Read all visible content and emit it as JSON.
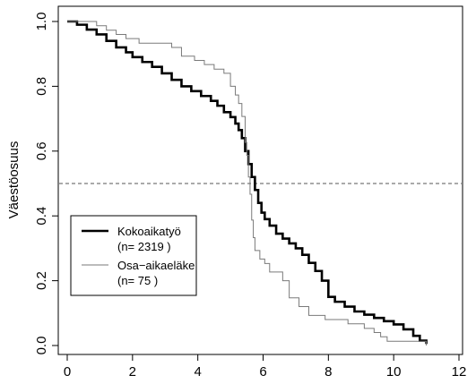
{
  "chart_data": {
    "type": "line",
    "line_shape": "step",
    "title": "",
    "xlabel": "",
    "ylabel": "Väestöosuus",
    "xlim": [
      0,
      12
    ],
    "ylim": [
      0,
      1
    ],
    "x_ticks": [
      0,
      2,
      4,
      6,
      8,
      10,
      12
    ],
    "y_ticks": [
      0.0,
      0.2,
      0.4,
      0.6,
      0.8,
      1.0
    ],
    "x_tick_labels": [
      "0",
      "2",
      "4",
      "6",
      "8",
      "10",
      "12"
    ],
    "y_tick_labels": [
      "0.0",
      "0.2",
      "0.4",
      "0.6",
      "0.8",
      "1.0"
    ],
    "grid": false,
    "reference_line": {
      "y": 0.5,
      "style": "dashed"
    },
    "legend": {
      "placement": "bottom-left",
      "entries": [
        {
          "label": "Kokoaikatyö",
          "sublabel": "(n= 2319 )",
          "line": "thick"
        },
        {
          "label": "Osa−aikaeläke",
          "sublabel": "(n= 75 )",
          "line": "thin"
        }
      ]
    },
    "series": [
      {
        "name": "Kokoaikatyö",
        "color": "#000000",
        "points": [
          [
            0,
            1.0
          ],
          [
            0.3,
            0.99
          ],
          [
            0.6,
            0.975
          ],
          [
            0.9,
            0.96
          ],
          [
            1.2,
            0.94
          ],
          [
            1.5,
            0.92
          ],
          [
            1.8,
            0.905
          ],
          [
            2.0,
            0.89
          ],
          [
            2.3,
            0.875
          ],
          [
            2.6,
            0.86
          ],
          [
            2.9,
            0.84
          ],
          [
            3.2,
            0.82
          ],
          [
            3.5,
            0.8
          ],
          [
            3.8,
            0.785
          ],
          [
            4.1,
            0.77
          ],
          [
            4.4,
            0.755
          ],
          [
            4.6,
            0.74
          ],
          [
            4.8,
            0.72
          ],
          [
            5.0,
            0.705
          ],
          [
            5.15,
            0.685
          ],
          [
            5.25,
            0.665
          ],
          [
            5.35,
            0.64
          ],
          [
            5.45,
            0.6
          ],
          [
            5.55,
            0.56
          ],
          [
            5.65,
            0.52
          ],
          [
            5.75,
            0.48
          ],
          [
            5.85,
            0.44
          ],
          [
            5.95,
            0.41
          ],
          [
            6.05,
            0.39
          ],
          [
            6.2,
            0.37
          ],
          [
            6.4,
            0.345
          ],
          [
            6.6,
            0.33
          ],
          [
            6.8,
            0.315
          ],
          [
            7.0,
            0.3
          ],
          [
            7.2,
            0.28
          ],
          [
            7.4,
            0.255
          ],
          [
            7.6,
            0.23
          ],
          [
            7.8,
            0.2
          ],
          [
            8.0,
            0.15
          ],
          [
            8.2,
            0.135
          ],
          [
            8.5,
            0.12
          ],
          [
            8.8,
            0.105
          ],
          [
            9.1,
            0.095
          ],
          [
            9.4,
            0.085
          ],
          [
            9.7,
            0.075
          ],
          [
            10.0,
            0.065
          ],
          [
            10.3,
            0.05
          ],
          [
            10.6,
            0.03
          ],
          [
            10.8,
            0.015
          ],
          [
            11.0,
            0.005
          ]
        ]
      },
      {
        "name": "Osa−aikaeläke",
        "color": "#7a7a7a",
        "points": [
          [
            0,
            1.0
          ],
          [
            0.9,
            0.987
          ],
          [
            1.2,
            0.973
          ],
          [
            1.5,
            0.96
          ],
          [
            1.8,
            0.947
          ],
          [
            2.2,
            0.933
          ],
          [
            3.2,
            0.92
          ],
          [
            3.5,
            0.893
          ],
          [
            3.9,
            0.88
          ],
          [
            4.2,
            0.867
          ],
          [
            4.5,
            0.853
          ],
          [
            4.8,
            0.84
          ],
          [
            5.0,
            0.8
          ],
          [
            5.15,
            0.773
          ],
          [
            5.25,
            0.747
          ],
          [
            5.35,
            0.707
          ],
          [
            5.45,
            0.627
          ],
          [
            5.5,
            0.587
          ],
          [
            5.55,
            0.52
          ],
          [
            5.6,
            0.467
          ],
          [
            5.65,
            0.387
          ],
          [
            5.7,
            0.333
          ],
          [
            5.75,
            0.293
          ],
          [
            5.9,
            0.267
          ],
          [
            6.05,
            0.253
          ],
          [
            6.2,
            0.227
          ],
          [
            6.6,
            0.2
          ],
          [
            6.8,
            0.147
          ],
          [
            7.1,
            0.12
          ],
          [
            7.4,
            0.093
          ],
          [
            7.9,
            0.08
          ],
          [
            8.6,
            0.067
          ],
          [
            9.1,
            0.053
          ],
          [
            9.4,
            0.04
          ],
          [
            9.6,
            0.027
          ],
          [
            9.8,
            0.013
          ],
          [
            10.9,
            0.013
          ],
          [
            11.0,
            0.0
          ]
        ]
      }
    ]
  }
}
